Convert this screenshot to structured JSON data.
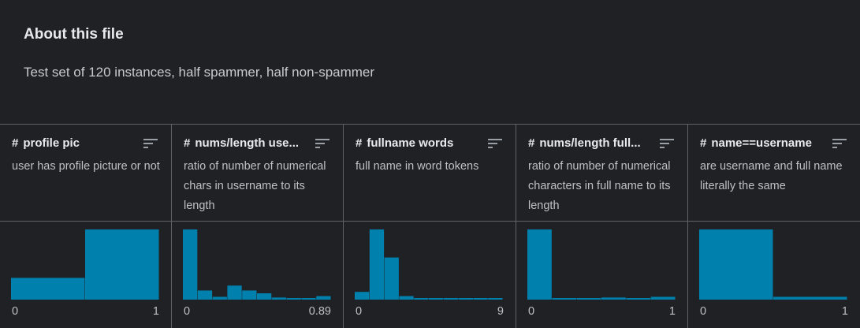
{
  "about": {
    "title": "About this file",
    "description": "Test set of 120 instances, half spammer, half non-spammer"
  },
  "colors": {
    "bar": "#0080ad",
    "background": "#202124",
    "border": "#5f6368"
  },
  "columns": [
    {
      "type_icon": "#",
      "title": "profile pic",
      "description": "user has profile picture or not",
      "range_min": "0",
      "range_max": "1",
      "histogram": [
        0.31,
        1.0
      ]
    },
    {
      "type_icon": "#",
      "title": "nums/length use...",
      "description": "ratio of number of numerical chars in username to its length",
      "range_min": "0",
      "range_max": "0.89",
      "histogram": [
        1.0,
        0.13,
        0.04,
        0.2,
        0.13,
        0.09,
        0.03,
        0.0,
        0.0,
        0.05
      ]
    },
    {
      "type_icon": "#",
      "title": "fullname words",
      "description": "full name in word tokens",
      "range_min": "0",
      "range_max": "9",
      "histogram": [
        0.11,
        1.0,
        0.6,
        0.05,
        0.01,
        0.0,
        0.02,
        0.01,
        0.0,
        0.0
      ]
    },
    {
      "type_icon": "#",
      "title": "nums/length full...",
      "description": "ratio of number of numerical characters in full name to its length",
      "range_min": "0",
      "range_max": "1",
      "histogram": [
        1.0,
        0.02,
        0.0,
        0.03,
        0.01,
        0.04
      ]
    },
    {
      "type_icon": "#",
      "title": "name==username",
      "description": "are username and full name literally the same",
      "range_min": "0",
      "range_max": "1",
      "histogram": [
        1.0,
        0.04
      ]
    }
  ]
}
